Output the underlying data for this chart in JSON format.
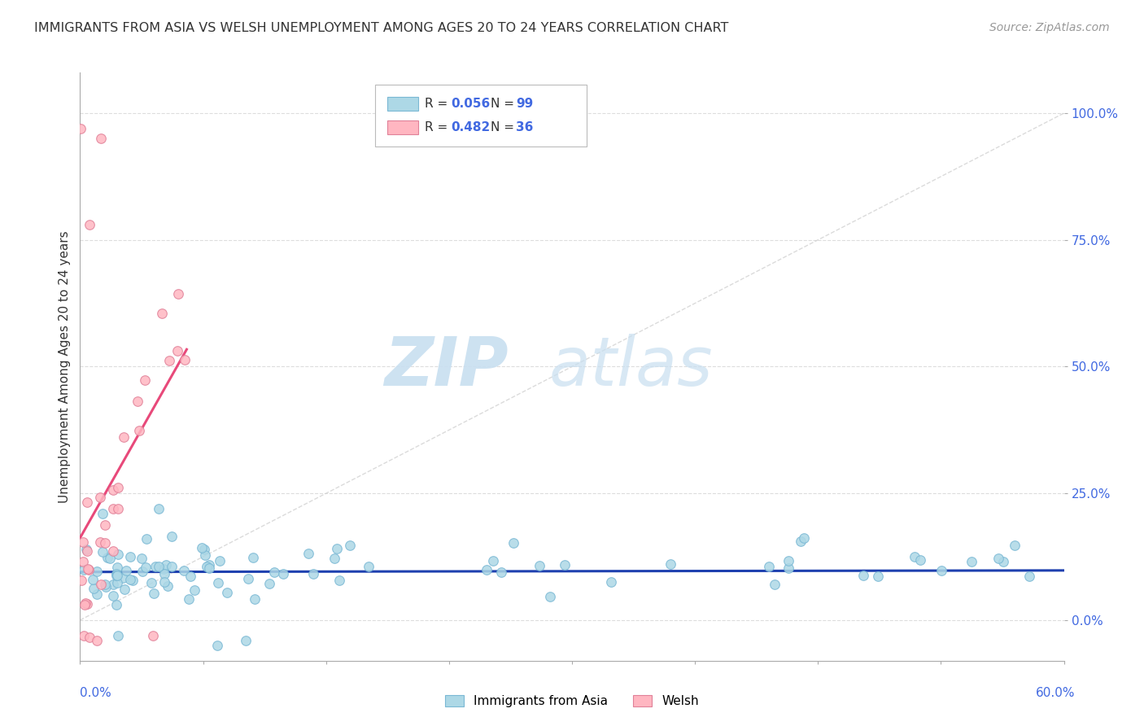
{
  "title": "IMMIGRANTS FROM ASIA VS WELSH UNEMPLOYMENT AMONG AGES 20 TO 24 YEARS CORRELATION CHART",
  "source": "Source: ZipAtlas.com",
  "ylabel": "Unemployment Among Ages 20 to 24 years",
  "xlim": [
    0.0,
    0.6
  ],
  "ylim": [
    -0.08,
    1.08
  ],
  "yticks": [
    0.0,
    0.25,
    0.5,
    0.75,
    1.0
  ],
  "ytick_labels": [
    "0.0%",
    "25.0%",
    "50.0%",
    "75.0%",
    "100.0%"
  ],
  "color_asia": "#ADD8E6",
  "color_welsh": "#FFB6C1",
  "line_color_asia": "#1E40AF",
  "line_color_welsh": "#E8497A",
  "diagonal_color": "#CCCCCC",
  "watermark_zip": "ZIP",
  "watermark_atlas": "atlas",
  "background_color": "#FFFFFF",
  "grid_color": "#DDDDDD",
  "legend_box_color": "#FFFFFF",
  "legend_edge_color": "#CCCCCC",
  "r_color": "#4169E1",
  "text_color": "#333333",
  "source_color": "#999999"
}
